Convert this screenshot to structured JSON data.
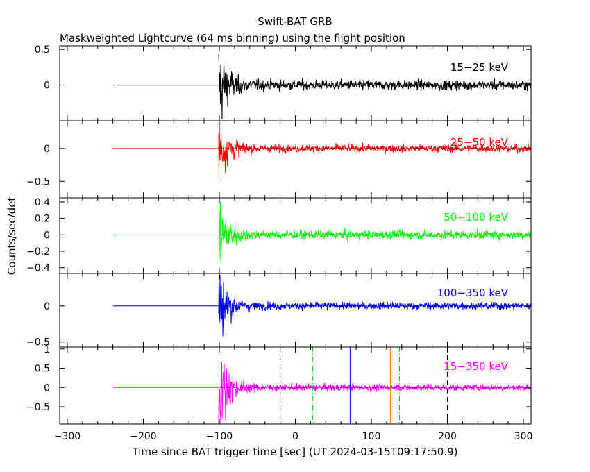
{
  "chart_data": {
    "type": "line",
    "title": "Swift-BAT GRB",
    "subtitle": "Maskweighted Lightcurve (64 ms binning) using the flight position",
    "xlabel": "Time since BAT trigger time [sec] (UT 2024-03-15T09:17:50.9)",
    "ylabel": "Counts/sec/det",
    "xlim": [
      -310,
      310
    ],
    "xticks": [
      -300,
      -200,
      -100,
      0,
      100,
      200,
      300
    ],
    "xtick_labels": [
      "−300",
      "−200",
      "−100",
      "0",
      "100",
      "200",
      "300"
    ],
    "data_start": -240,
    "trigger_time": -100,
    "panels": [
      {
        "label": "15−25 keV",
        "color": "#000000",
        "ylim": [
          -0.5,
          0.55
        ],
        "yticks": [
          0.5,
          0
        ],
        "ytick_labels": [
          "0.5",
          "0"
        ],
        "spike": 0.45,
        "decay_tau": 12,
        "noise": 0.055
      },
      {
        "label": "25−50 keV",
        "color": "#ff0000",
        "ylim": [
          -0.75,
          0.42
        ],
        "yticks": [
          0,
          -0.5
        ],
        "ytick_labels": [
          "0",
          "−0.5"
        ],
        "spike": 0.4,
        "decay_tau": 12,
        "noise": 0.045
      },
      {
        "label": "50−100 keV",
        "color": "#00ff00",
        "ylim": [
          -0.47,
          0.45
        ],
        "yticks": [
          0.4,
          0.2,
          0,
          -0.2,
          -0.4
        ],
        "ytick_labels": [
          "0.4",
          "0.2",
          "0",
          "−0.2",
          "−0.4"
        ],
        "spike": 0.35,
        "decay_tau": 12,
        "noise": 0.04
      },
      {
        "label": "100−350 keV",
        "color": "#0000ff",
        "ylim": [
          -0.57,
          0.45
        ],
        "yticks": [
          0,
          -0.5
        ],
        "ytick_labels": [
          "0",
          "−0.5"
        ],
        "spike": 0.4,
        "decay_tau": 12,
        "noise": 0.04
      },
      {
        "label": "15−350 keV",
        "color": "#ff00ff",
        "ylim": [
          -0.95,
          1.05
        ],
        "yticks": [
          1,
          0.5,
          0,
          -0.5
        ],
        "ytick_labels": [
          "1",
          "0.5",
          "0",
          "−0.5"
        ],
        "spike": 0.9,
        "decay_tau": 12,
        "noise": 0.07
      }
    ],
    "markers": [
      {
        "x": -20,
        "color": "#000000",
        "style": "dashed"
      },
      {
        "x": 23,
        "color": "#00cc00",
        "style": "dashdot"
      },
      {
        "x": 72,
        "color": "#0000ff",
        "style": "solid"
      },
      {
        "x": 125,
        "color": "#ff8000",
        "style": "solid"
      },
      {
        "x": 137,
        "color": "#00cc00",
        "style": "dashdot"
      },
      {
        "x": 200,
        "color": "#000000",
        "style": "dashed"
      }
    ],
    "grid": false,
    "zero_line": true
  }
}
